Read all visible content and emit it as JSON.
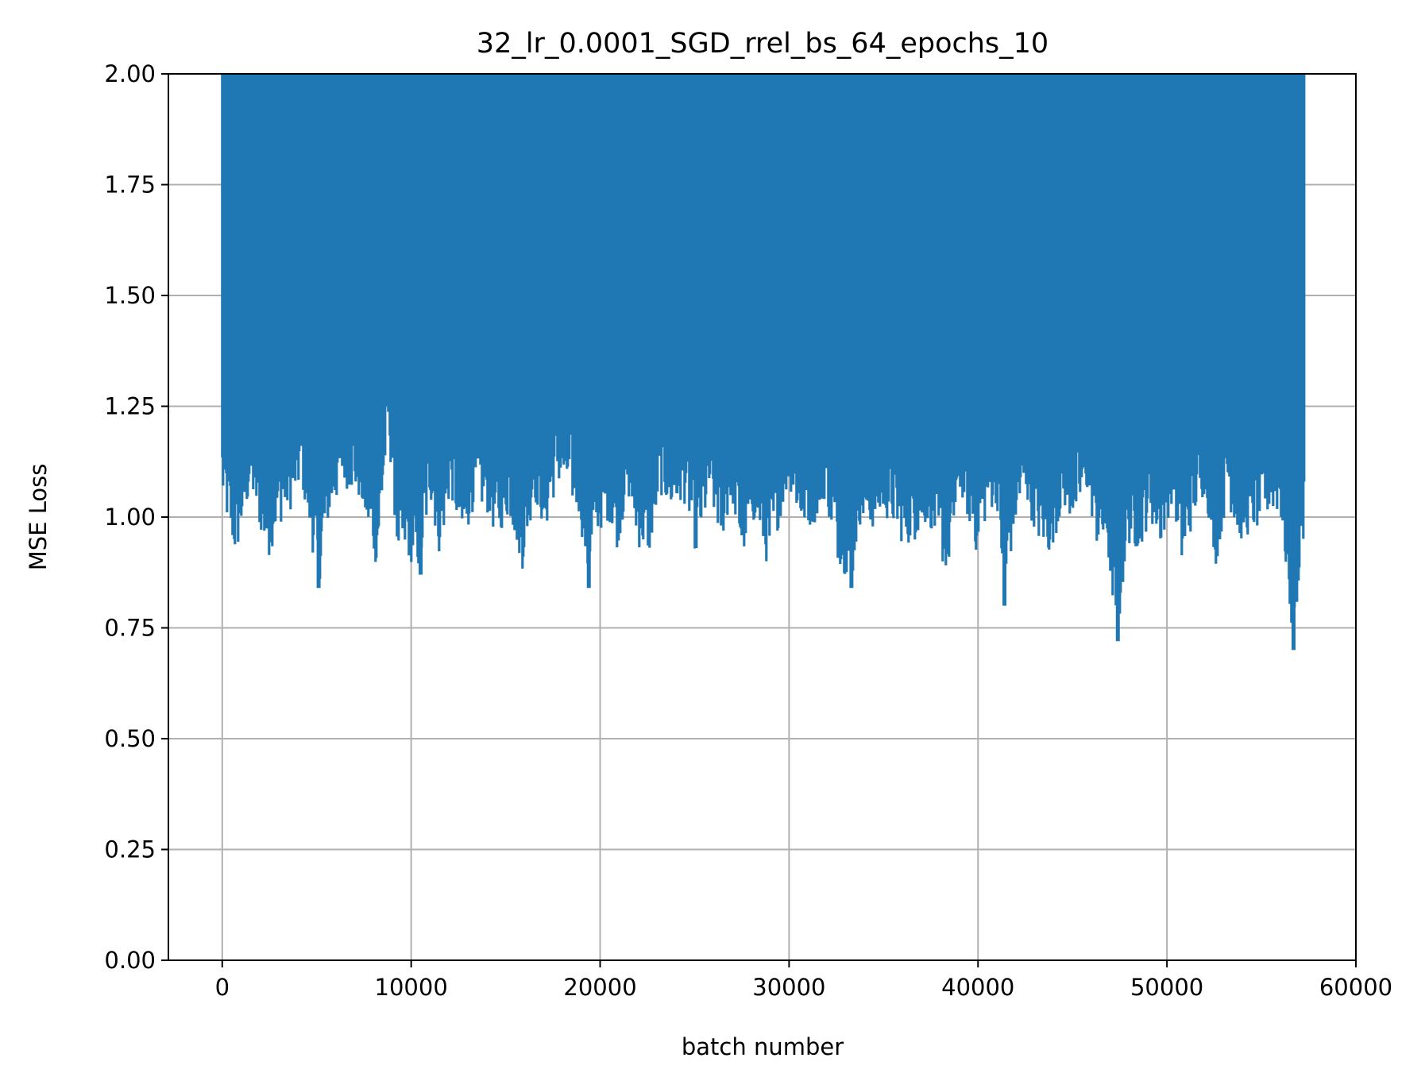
{
  "chart_data": {
    "type": "line",
    "title": "32_lr_0.0001_SGD_rrel_bs_64_epochs_10",
    "xlabel": "batch number",
    "ylabel": "MSE Loss",
    "xlim": [
      -2850,
      60000
    ],
    "ylim": [
      0,
      2.0
    ],
    "grid": true,
    "xticks": [
      0,
      10000,
      20000,
      30000,
      40000,
      50000,
      60000
    ],
    "xtick_labels": [
      "0",
      "10000",
      "20000",
      "30000",
      "40000",
      "50000",
      "60000"
    ],
    "yticks": [
      0,
      0.25,
      0.5,
      0.75,
      1.0,
      1.25,
      1.5,
      1.75,
      2.0
    ],
    "ytick_labels": [
      "0.00",
      "0.25",
      "0.50",
      "0.75",
      "1.00",
      "1.25",
      "1.50",
      "1.75",
      "2.00"
    ],
    "series": [
      {
        "color": "#1f77b4",
        "x_start": 0,
        "x_end": 57300,
        "upper_envelope": 2.0,
        "notable_minima": [
          {
            "x": 5100,
            "y": 0.84
          },
          {
            "x": 10500,
            "y": 0.87
          },
          {
            "x": 19400,
            "y": 0.84
          },
          {
            "x": 33300,
            "y": 0.84
          },
          {
            "x": 41400,
            "y": 0.8
          },
          {
            "x": 47400,
            "y": 0.72
          },
          {
            "x": 56700,
            "y": 0.7
          }
        ],
        "lower_envelope": [
          [
            0,
            1.03
          ],
          [
            700,
            0.9
          ],
          [
            1500,
            1.05
          ],
          [
            2400,
            0.9
          ],
          [
            3000,
            0.98
          ],
          [
            3700,
            1.02
          ],
          [
            4200,
            1.07
          ],
          [
            5100,
            0.84
          ],
          [
            5600,
            0.98
          ],
          [
            6400,
            1.07
          ],
          [
            7200,
            1.04
          ],
          [
            8200,
            0.88
          ],
          [
            8800,
            1.18
          ],
          [
            9300,
            0.9
          ],
          [
            9900,
            0.9
          ],
          [
            10500,
            0.87
          ],
          [
            11000,
            1.04
          ],
          [
            11500,
            0.91
          ],
          [
            12100,
            1.05
          ],
          [
            12700,
            0.92
          ],
          [
            13300,
            1.02
          ],
          [
            14000,
            1.01
          ],
          [
            14500,
            0.95
          ],
          [
            15200,
            1.0
          ],
          [
            15900,
            0.88
          ],
          [
            16500,
            1.04
          ],
          [
            17100,
            0.96
          ],
          [
            17700,
            1.07
          ],
          [
            18400,
            1.04
          ],
          [
            18900,
            1.0
          ],
          [
            19400,
            0.84
          ],
          [
            19800,
            0.96
          ],
          [
            20500,
            0.99
          ],
          [
            20900,
            0.93
          ],
          [
            21500,
            1.04
          ],
          [
            22000,
            0.93
          ],
          [
            22600,
            0.91
          ],
          [
            23200,
            1.05
          ],
          [
            23800,
            1.0
          ],
          [
            24500,
            1.03
          ],
          [
            25100,
            0.91
          ],
          [
            25800,
            1.03
          ],
          [
            26400,
            0.94
          ],
          [
            27000,
            1.03
          ],
          [
            27500,
            0.9
          ],
          [
            28200,
            0.99
          ],
          [
            28900,
            0.88
          ],
          [
            29400,
            0.97
          ],
          [
            30000,
            1.07
          ],
          [
            30600,
            0.97
          ],
          [
            31300,
            0.98
          ],
          [
            31900,
            1.04
          ],
          [
            32500,
            0.91
          ],
          [
            33300,
            0.84
          ],
          [
            33700,
            0.98
          ],
          [
            34400,
            0.97
          ],
          [
            35000,
            1.0
          ],
          [
            35600,
            0.97
          ],
          [
            36100,
            0.93
          ],
          [
            36800,
            0.95
          ],
          [
            37400,
            0.99
          ],
          [
            37900,
            0.91
          ],
          [
            38400,
            0.87
          ],
          [
            39100,
            1.05
          ],
          [
            39900,
            0.92
          ],
          [
            40500,
            1.0
          ],
          [
            41000,
            1.03
          ],
          [
            41400,
            0.8
          ],
          [
            41900,
            0.96
          ],
          [
            42500,
            1.04
          ],
          [
            43200,
            0.94
          ],
          [
            43800,
            0.91
          ],
          [
            44500,
            1.02
          ],
          [
            45100,
            0.98
          ],
          [
            45800,
            1.05
          ],
          [
            46300,
            0.93
          ],
          [
            46800,
            0.92
          ],
          [
            47400,
            0.72
          ],
          [
            47900,
            0.94
          ],
          [
            48500,
            0.92
          ],
          [
            49100,
            0.99
          ],
          [
            49700,
            0.93
          ],
          [
            50300,
            1.04
          ],
          [
            50800,
            0.88
          ],
          [
            51400,
            0.99
          ],
          [
            52000,
            1.05
          ],
          [
            52600,
            0.89
          ],
          [
            53200,
            1.04
          ],
          [
            53800,
            0.94
          ],
          [
            54400,
            0.96
          ],
          [
            54900,
            0.97
          ],
          [
            55500,
            1.01
          ],
          [
            56000,
            1.0
          ],
          [
            56700,
            0.7
          ],
          [
            57100,
            0.92
          ]
        ]
      }
    ]
  }
}
